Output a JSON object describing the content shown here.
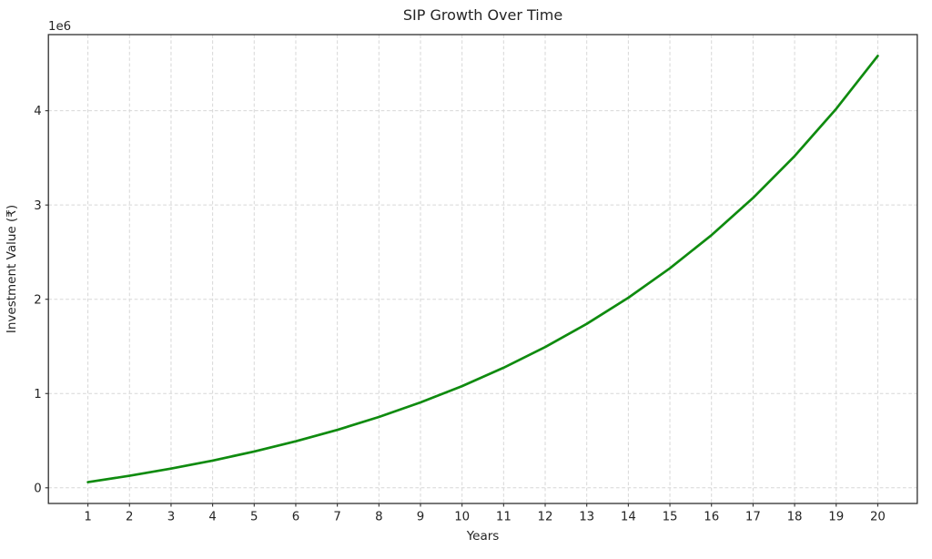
{
  "chart_data": {
    "type": "line",
    "title": "SIP Growth Over Time",
    "xlabel": "Years",
    "ylabel": "Investment Value (₹)",
    "offset_text": "1e6",
    "grid": true,
    "legend_position": "none",
    "line_color": "#0f8b0f",
    "xlim": [
      0.05,
      20.95
    ],
    "ylim": [
      -166082,
      4807727
    ],
    "xticks": [
      1,
      2,
      3,
      4,
      5,
      6,
      7,
      8,
      9,
      10,
      11,
      12,
      13,
      14,
      15,
      16,
      17,
      18,
      19,
      20
    ],
    "xtick_labels": [
      "1",
      "2",
      "3",
      "4",
      "5",
      "6",
      "7",
      "8",
      "9",
      "10",
      "11",
      "12",
      "13",
      "14",
      "15",
      "16",
      "17",
      "18",
      "19",
      "20"
    ],
    "yticks": [
      0,
      1000000,
      2000000,
      3000000,
      4000000
    ],
    "ytick_labels": [
      "0",
      "1",
      "2",
      "3",
      "4"
    ],
    "series": [
      {
        "x": [
          1,
          2,
          3,
          4,
          5,
          6,
          7,
          8,
          9,
          10,
          11,
          12,
          13,
          14,
          15,
          16,
          17,
          18,
          19,
          20
        ],
        "y": [
          60000,
          127500,
          203438,
          288867,
          384975,
          493098,
          614735,
          751577,
          905524,
          1078714,
          1273553,
          1492748,
          1739341,
          2016759,
          2328853,
          2679960,
          3074955,
          3519324,
          4019240,
          4581645
        ]
      }
    ]
  }
}
